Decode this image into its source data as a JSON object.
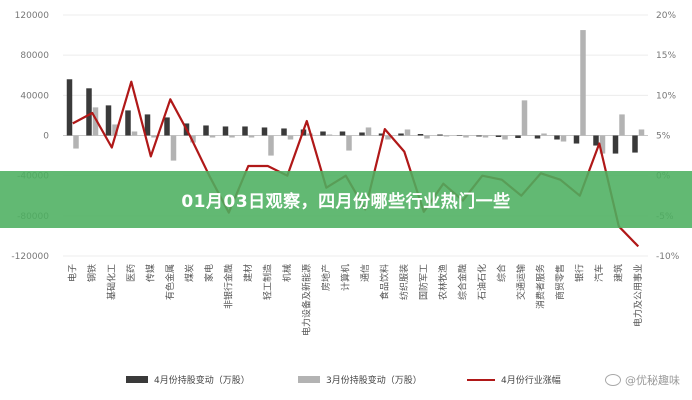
{
  "banner": {
    "title": "01月03日观察，四月份哪些行业热门一些"
  },
  "legend": {
    "series1": "4月份持股变动（万股）",
    "series2": "3月份持股变动（万股）",
    "series3": "4月份行业涨幅"
  },
  "watermark": {
    "text": "@优秘趣味"
  },
  "colors": {
    "april_bar": "#3a3a3a",
    "march_bar": "#b3b3b3",
    "line": "#b01818",
    "banner": "#4caf60",
    "axis_text": "#777777"
  },
  "chart_data": {
    "type": "bar",
    "categories": [
      "电子",
      "钢铁",
      "基础化工",
      "医药",
      "传媒",
      "有色金属",
      "煤炭",
      "家电",
      "非银行金融",
      "建材",
      "轻工制造",
      "机械",
      "电力设备及新能源",
      "房地产",
      "计算机",
      "通信",
      "食品饮料",
      "纺织服装",
      "国防军工",
      "农林牧渔",
      "综合金融",
      "石油石化",
      "综合",
      "交通运输",
      "消费者服务",
      "商贸零售",
      "银行",
      "汽车",
      "建筑",
      "电力及公用事业"
    ],
    "ylim_left": [
      -120000,
      120000
    ],
    "yticks_left": [
      "120000",
      "80000",
      "40000",
      "0",
      "-40000",
      "-80000",
      "-120000"
    ],
    "ylim_right": [
      -0.1,
      0.2
    ],
    "yticks_right": [
      "20%",
      "15%",
      "10%",
      "5%",
      "0%",
      "-5%",
      "-10%"
    ],
    "series": [
      {
        "name": "4月份持股变动（万股）",
        "type": "bar",
        "values": [
          56000,
          47000,
          30000,
          25000,
          21000,
          18000,
          12000,
          10000,
          9000,
          9000,
          8000,
          7000,
          6000,
          4000,
          4000,
          3000,
          2000,
          2000,
          1500,
          1000,
          500,
          -1000,
          -1500,
          -2500,
          -3000,
          -4000,
          -8000,
          -10000,
          -18000,
          -17000
        ]
      },
      {
        "name": "3月份持股变动（万股）",
        "type": "bar",
        "values": [
          -13000,
          28000,
          11000,
          4000,
          -2000,
          -25000,
          -7000,
          -2000,
          -2000,
          -2000,
          -20000,
          -4000,
          2000,
          1000,
          -15000,
          8000,
          -4000,
          6000,
          -3000,
          -1000,
          -2000,
          -2000,
          -4000,
          35000,
          2000,
          -6000,
          105000,
          -18000,
          21000,
          6000
        ]
      },
      {
        "name": "4月份行业涨幅",
        "type": "line",
        "values": [
          0.065,
          0.078,
          0.035,
          0.117,
          0.024,
          0.095,
          0.05,
          0.0,
          -0.046,
          0.012,
          0.012,
          0.0,
          0.068,
          -0.015,
          0.0,
          -0.042,
          0.058,
          0.03,
          -0.045,
          -0.01,
          -0.031,
          0.0,
          -0.005,
          -0.025,
          0.003,
          -0.005,
          -0.025,
          0.04,
          -0.063,
          -0.088
        ]
      }
    ]
  }
}
